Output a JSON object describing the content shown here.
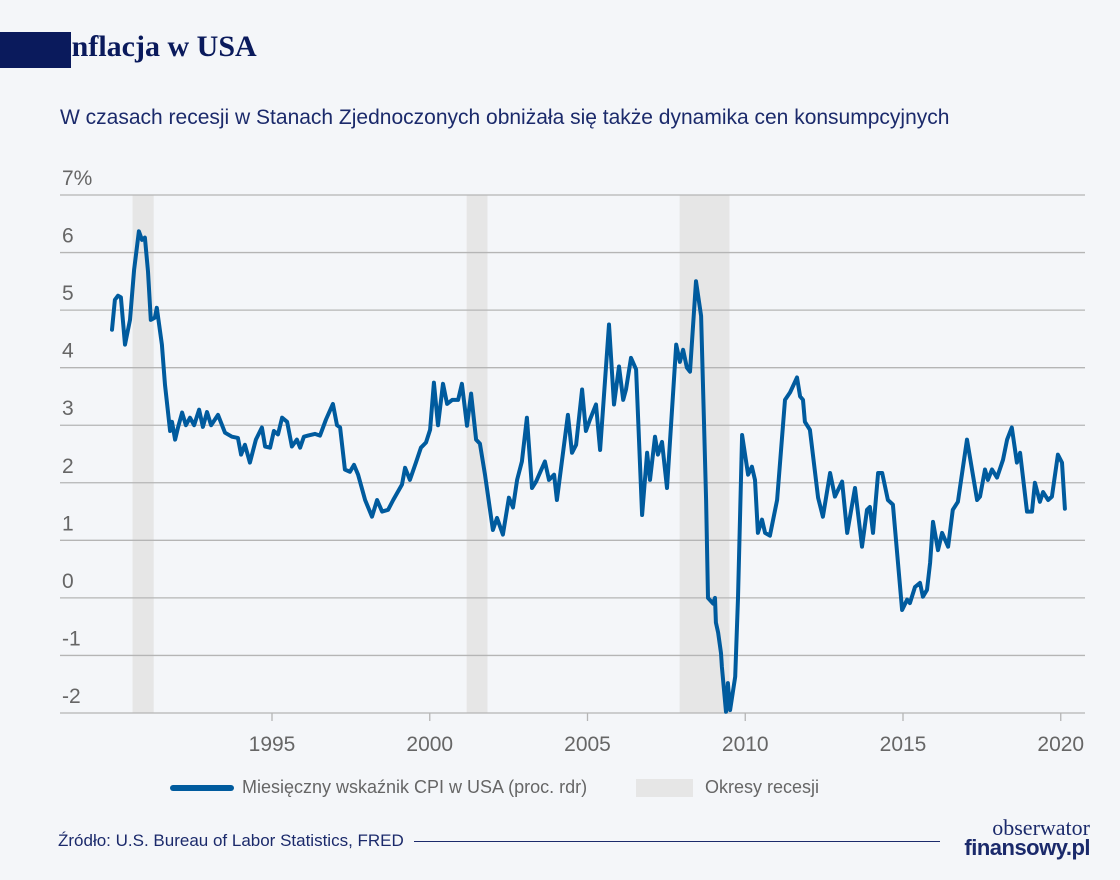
{
  "header": {
    "title": "Inflacja w USA",
    "subtitle": "W czasach recesji w Stanach Zjednoczonych obniżała się także dynamika cen konsumpcyjnych"
  },
  "chart_data": {
    "type": "line",
    "title": "Inflacja w USA",
    "y_unit_label": "7%",
    "ylim": [
      -2,
      7
    ],
    "y_ticks": [
      -2,
      -1,
      0,
      1,
      2,
      3,
      4,
      5,
      6,
      7
    ],
    "y_tick_labels": [
      "-2",
      "-1",
      "0",
      "1",
      "2",
      "3",
      "4",
      "5",
      "6",
      "7%"
    ],
    "xlim": [
      1989.3,
      2020.9
    ],
    "x_ticks": [
      1995,
      2000,
      2005,
      2010,
      2015,
      2020
    ],
    "x_tick_labels": [
      "1995",
      "2000",
      "2005",
      "2010",
      "2015",
      "2020"
    ],
    "grid": "horizontal",
    "legend_placement": "bottom",
    "colors": {
      "line": "#005b9e",
      "recession": "#e6e6e6",
      "grid": "#b5b5b5",
      "title": "#0a1a5c"
    },
    "recessions": {
      "name": "Okresy recesji",
      "periods": [
        [
          1990.58,
          1991.25
        ],
        [
          2001.17,
          2001.83
        ],
        [
          2007.92,
          2009.5
        ]
      ]
    },
    "series": [
      {
        "name": "Miesięczny wskaźnik CPI w USA (proc. rdr)",
        "x": [
          1989.93,
          1990.02,
          1990.12,
          1990.21,
          1990.34,
          1990.5,
          1990.63,
          1990.78,
          1990.88,
          1990.97,
          1991.07,
          1991.16,
          1991.29,
          1991.35,
          1991.51,
          1991.61,
          1991.77,
          1991.83,
          1991.93,
          1992.02,
          1992.15,
          1992.27,
          1992.4,
          1992.53,
          1992.69,
          1992.81,
          1992.94,
          1993.07,
          1993.29,
          1993.51,
          1993.73,
          1993.92,
          1994.02,
          1994.14,
          1994.3,
          1994.49,
          1994.68,
          1994.78,
          1994.94,
          1995.06,
          1995.19,
          1995.32,
          1995.48,
          1995.63,
          1995.79,
          1995.89,
          1996.01,
          1996.14,
          1996.36,
          1996.52,
          1996.71,
          1996.93,
          1997.06,
          1997.16,
          1997.31,
          1997.47,
          1997.6,
          1997.73,
          1997.95,
          1998.17,
          1998.33,
          1998.49,
          1998.68,
          1998.84,
          1999.12,
          1999.22,
          1999.37,
          1999.56,
          1999.72,
          1999.88,
          2000.01,
          2000.13,
          2000.26,
          2000.42,
          2000.55,
          2000.71,
          2000.9,
          2001.02,
          2001.18,
          2001.31,
          2001.47,
          2001.59,
          2001.75,
          2002.0,
          2002.13,
          2002.32,
          2002.51,
          2002.64,
          2002.77,
          2002.92,
          2003.08,
          2003.24,
          2003.37,
          2003.65,
          2003.78,
          2003.94,
          2004.03,
          2004.38,
          2004.51,
          2004.64,
          2004.83,
          2004.95,
          2005.08,
          2005.27,
          2005.4,
          2005.68,
          2005.84,
          2006.0,
          2006.13,
          2006.22,
          2006.38,
          2006.54,
          2006.73,
          2006.89,
          2006.98,
          2007.14,
          2007.23,
          2007.36,
          2007.52,
          2007.81,
          2007.93,
          2008.03,
          2008.15,
          2008.25,
          2008.44,
          2008.6,
          2008.76,
          2008.82,
          2008.98,
          2009.04,
          2009.07,
          2009.14,
          2009.23,
          2009.26,
          2009.39,
          2009.45,
          2009.52,
          2009.68,
          2009.77,
          2009.9,
          2010.09,
          2010.21,
          2010.31,
          2010.4,
          2010.53,
          2010.63,
          2010.78,
          2011.01,
          2011.26,
          2011.42,
          2011.64,
          2011.74,
          2011.83,
          2011.89,
          2012.05,
          2012.31,
          2012.46,
          2012.69,
          2012.84,
          2013.07,
          2013.23,
          2013.48,
          2013.7,
          2013.86,
          2013.95,
          2014.05,
          2014.21,
          2014.34,
          2014.52,
          2014.68,
          2014.97,
          2015.13,
          2015.22,
          2015.38,
          2015.54,
          2015.63,
          2015.76,
          2015.86,
          2015.95,
          2016.11,
          2016.24,
          2016.43,
          2016.58,
          2016.74,
          2017.03,
          2017.35,
          2017.44,
          2017.6,
          2017.69,
          2017.82,
          2017.98,
          2018.17,
          2018.3,
          2018.45,
          2018.61,
          2018.71,
          2018.93,
          2019.09,
          2019.18,
          2019.34,
          2019.44,
          2019.6,
          2019.72,
          2019.91,
          2020.04,
          2020.13
        ],
        "values": [
          4.66,
          5.18,
          5.25,
          5.22,
          4.4,
          4.83,
          5.7,
          6.37,
          6.22,
          6.26,
          5.67,
          4.83,
          4.87,
          5.04,
          4.4,
          3.7,
          2.9,
          3.06,
          2.75,
          2.96,
          3.22,
          3.0,
          3.13,
          3.0,
          3.27,
          2.97,
          3.23,
          3.0,
          3.18,
          2.87,
          2.8,
          2.78,
          2.49,
          2.66,
          2.35,
          2.75,
          2.96,
          2.63,
          2.61,
          2.9,
          2.84,
          3.13,
          3.06,
          2.63,
          2.75,
          2.61,
          2.8,
          2.82,
          2.85,
          2.82,
          3.1,
          3.37,
          3.0,
          2.96,
          2.23,
          2.19,
          2.31,
          2.14,
          1.7,
          1.41,
          1.7,
          1.5,
          1.53,
          1.7,
          1.97,
          2.26,
          2.05,
          2.35,
          2.61,
          2.7,
          2.92,
          3.74,
          3.0,
          3.72,
          3.37,
          3.44,
          3.44,
          3.72,
          2.99,
          3.55,
          2.75,
          2.68,
          2.14,
          1.18,
          1.39,
          1.1,
          1.74,
          1.57,
          2.05,
          2.37,
          3.13,
          1.91,
          2.02,
          2.37,
          2.05,
          2.14,
          1.7,
          3.18,
          2.52,
          2.66,
          3.62,
          2.9,
          3.1,
          3.36,
          2.57,
          4.75,
          3.36,
          4.02,
          3.44,
          3.62,
          4.17,
          3.97,
          1.44,
          2.52,
          2.05,
          2.8,
          2.49,
          2.71,
          1.91,
          4.4,
          4.1,
          4.31,
          4.0,
          3.93,
          5.5,
          4.9,
          1.7,
          0.0,
          -0.1,
          0.0,
          -0.43,
          -0.6,
          -0.96,
          -1.2,
          -1.98,
          -1.48,
          -1.95,
          -1.37,
          0.0,
          2.83,
          2.14,
          2.28,
          2.05,
          1.13,
          1.36,
          1.13,
          1.08,
          1.7,
          3.44,
          3.57,
          3.83,
          3.5,
          3.44,
          3.06,
          2.92,
          1.74,
          1.41,
          2.17,
          1.76,
          2.02,
          1.13,
          1.91,
          0.89,
          1.53,
          1.58,
          1.13,
          2.17,
          2.17,
          1.7,
          1.62,
          -0.21,
          -0.03,
          -0.09,
          0.19,
          0.26,
          0.02,
          0.14,
          0.61,
          1.32,
          0.83,
          1.13,
          0.89,
          1.53,
          1.67,
          2.75,
          1.7,
          1.76,
          2.23,
          2.05,
          2.23,
          2.09,
          2.4,
          2.75,
          2.96,
          2.35,
          2.52,
          1.5,
          1.5,
          2.0,
          1.67,
          1.84,
          1.7,
          1.76,
          2.49,
          2.35,
          1.55
        ]
      }
    ]
  },
  "legend": {
    "series_label": "Miesięczny wskaźnik CPI w USA (proc. rdr)",
    "recession_label": "Okresy recesji"
  },
  "footer": {
    "source": "Źródło: U.S. Bureau of Labor Statistics, FRED",
    "logo_line1": "obserwator",
    "logo_line2": "finansowy.pl"
  }
}
